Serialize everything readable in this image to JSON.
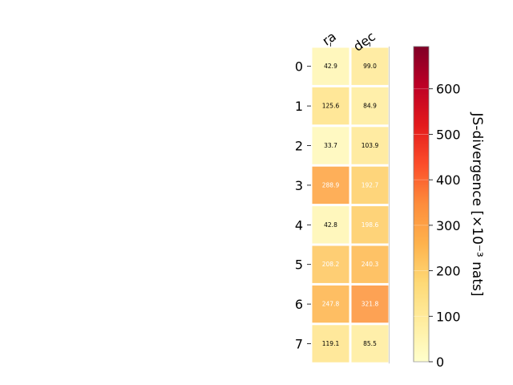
{
  "chart_data": {
    "type": "heatmap",
    "columns": [
      "ra",
      "dec"
    ],
    "rows": [
      "0",
      "1",
      "2",
      "3",
      "4",
      "5",
      "6",
      "7"
    ],
    "values": [
      [
        42.9,
        99.0
      ],
      [
        125.6,
        84.9
      ],
      [
        33.7,
        103.9
      ],
      [
        288.9,
        192.7
      ],
      [
        42.8,
        198.6
      ],
      [
        208.2,
        240.3
      ],
      [
        247.8,
        321.8
      ],
      [
        119.1,
        85.5
      ]
    ],
    "value_labels": [
      [
        "42.9",
        "99.0"
      ],
      [
        "125.6",
        "84.9"
      ],
      [
        "33.7",
        "103.9"
      ],
      [
        "288.9",
        "192.7"
      ],
      [
        "42.8",
        "198.6"
      ],
      [
        "208.2",
        "240.3"
      ],
      [
        "247.8",
        "321.8"
      ],
      [
        "119.1",
        "85.5"
      ]
    ],
    "colorbar": {
      "label": "JS-divergence [×10⁻³ nats]",
      "range": [
        0,
        693
      ],
      "ticks": [
        0,
        100,
        200,
        300,
        400,
        500,
        600
      ],
      "tick_labels": [
        "0",
        "100",
        "200",
        "300",
        "400",
        "500",
        "600"
      ],
      "colormap": "YlOrRd"
    },
    "grid": false,
    "legend": "none"
  }
}
